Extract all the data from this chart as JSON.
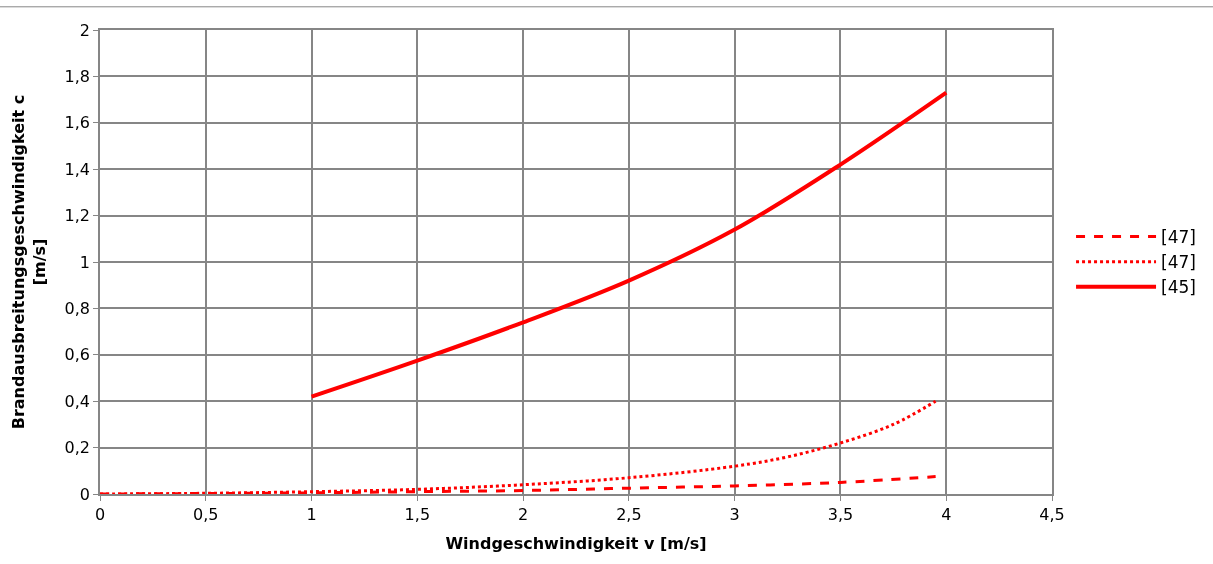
{
  "chart_data": {
    "type": "line",
    "xlabel": "Windgeschwindigkeit v [m/s]",
    "ylabel": "Brandausbreitungsgeschwindigkeit c [m/s]",
    "xlim": [
      0,
      4.5
    ],
    "xticks": [
      0,
      {
        "value": 0.5,
        "label": "0,5"
      },
      1,
      {
        "value": 1.5,
        "label": "1,5"
      },
      2,
      {
        "value": 2.5,
        "label": "2,5"
      },
      3,
      {
        "value": 3.5,
        "label": "3,5"
      },
      4,
      {
        "value": 4.5,
        "label": "4,5"
      }
    ],
    "ylim": [
      0,
      2
    ],
    "yticks": [
      0,
      {
        "value": 0.2,
        "label": "0,2"
      },
      {
        "value": 0.4,
        "label": "0,4"
      },
      {
        "value": 0.6,
        "label": "0,6"
      },
      {
        "value": 0.8,
        "label": "0,8"
      },
      1,
      {
        "value": 1.2,
        "label": "1,2"
      },
      {
        "value": 1.4,
        "label": "1,4"
      },
      {
        "value": 1.6,
        "label": "1,6"
      },
      {
        "value": 1.8,
        "label": "1,8"
      },
      2
    ],
    "grid": true,
    "legend": "right",
    "series": [
      {
        "name": "[47]",
        "color": "#ff0000",
        "line_style": "dashed",
        "x": [
          0,
          0.5,
          1,
          1.5,
          2,
          2.5,
          3,
          3.5,
          3.95
        ],
        "values": [
          0,
          0.002,
          0.005,
          0.01,
          0.015,
          0.025,
          0.035,
          0.05,
          0.075
        ]
      },
      {
        "name": "[47]",
        "color": "#ff0000",
        "line_style": "dotted",
        "x": [
          0,
          0.5,
          1,
          1.5,
          2,
          2.5,
          3,
          3.25,
          3.5,
          3.75,
          3.95
        ],
        "values": [
          0,
          0.003,
          0.01,
          0.02,
          0.04,
          0.07,
          0.12,
          0.16,
          0.22,
          0.3,
          0.4
        ]
      },
      {
        "name": "[45]",
        "color": "#ff0000",
        "line_style": "solid",
        "x": [
          1,
          1.5,
          2,
          2.5,
          3,
          3.5,
          4
        ],
        "values": [
          0.42,
          0.575,
          0.74,
          0.92,
          1.14,
          1.42,
          1.73
        ]
      }
    ]
  }
}
